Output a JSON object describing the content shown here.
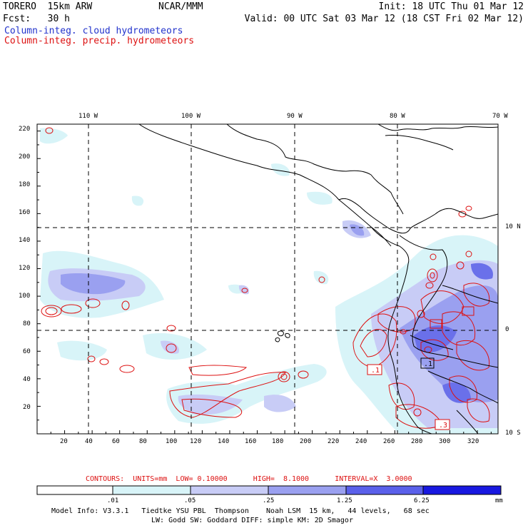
{
  "header": {
    "model": "TORERO  15km ARW",
    "center": "NCAR/MMM",
    "init": "Init: 18 UTC Thu 01 Mar 12",
    "fcst": "Fcst:   30 h",
    "valid": "Valid: 00 UTC Sat 03 Mar 12 (18 CST Fri 02 Mar 12)",
    "legend_cloud": "Column-integ. cloud hydrometeors",
    "legend_precip": "Column-integ. precip. hydrometeors"
  },
  "colors": {
    "cloud_legend": "#2233cc",
    "precip_contour": "#dd1111",
    "shade_1": "#d8f4f8",
    "shade_2": "#c8ccf6",
    "shade_3": "#9aa0f0",
    "shade_4": "#6a70ea",
    "shade_5": "#3c40e8",
    "shade_6": "#1818e0"
  },
  "map": {
    "lon_labels": [
      "110 W",
      "100 W",
      "90 W",
      "80 W",
      "70 W"
    ],
    "lat_labels": [
      "10 N",
      "0",
      "10 S"
    ],
    "y_ticks": [
      "220",
      "200",
      "180",
      "160",
      "140",
      "120",
      "100",
      "80",
      "60",
      "40",
      "20"
    ],
    "x_ticks": [
      "20",
      "40",
      "60",
      "80",
      "100",
      "120",
      "140",
      "160",
      "180",
      "200",
      "220",
      "240",
      "260",
      "280",
      "300",
      "320"
    ],
    "box_labels": [
      ".1",
      ".1",
      ".3"
    ],
    "y_range": [
      0,
      225
    ],
    "x_range": [
      0,
      335
    ]
  },
  "contour_info": {
    "label": "CONTOURS:  UNITS=mm  LOW= 0.10000      HIGH=  8.1000      INTERVAL=X  3.0000"
  },
  "colorbar": {
    "levels": [
      ".01",
      ".05",
      ".25",
      "1.25",
      "6.25"
    ],
    "unit": "mm"
  },
  "footer": {
    "line1": "Model Info: V3.3.1   Tiedtke YSU PBL  Thompson    Noah LSM  15 km,   44 levels,   68 sec",
    "line2": "LW: Godd SW: Goddard DIFF: simple KM: 2D Smagor"
  }
}
